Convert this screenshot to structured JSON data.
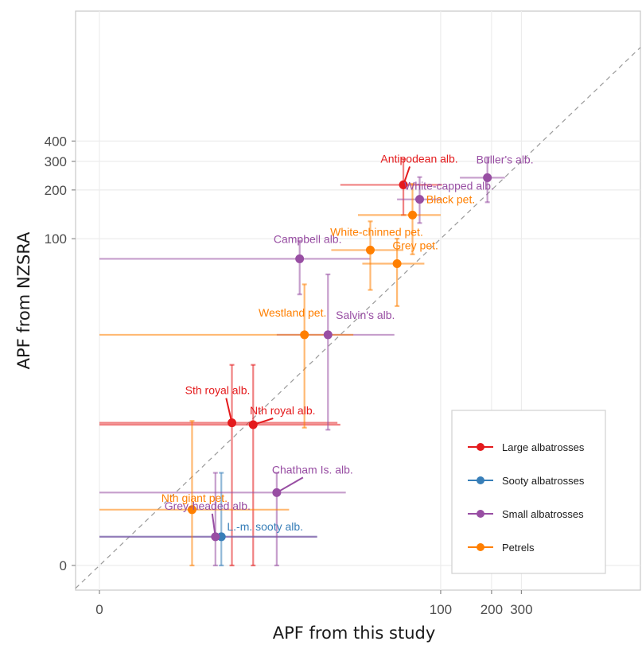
{
  "chart_data": {
    "type": "scatter",
    "xlabel": "APF from this study",
    "ylabel": "APF from NZSRA",
    "x_ticks": [
      {
        "value": 0,
        "label": "0"
      },
      {
        "value": 100,
        "label": "100"
      },
      {
        "value": 200,
        "label": "200"
      },
      {
        "value": 300,
        "label": "300"
      }
    ],
    "y_ticks": [
      {
        "value": 0,
        "label": "0"
      },
      {
        "value": 100,
        "label": "100"
      },
      {
        "value": 200,
        "label": "200"
      },
      {
        "value": 300,
        "label": "300"
      },
      {
        "value": 400,
        "label": "400"
      }
    ],
    "grid": true,
    "reference_line": "y = x (dashed)",
    "legend_position": "bottom-right",
    "colors": {
      "Large albatrosses": "#e41a1c",
      "Sooty albatrosses": "#377eb8",
      "Small albatrosses": "#984ea3",
      "Petrels": "#ff7f00"
    },
    "groups": [
      "Large albatrosses",
      "Sooty albatrosses",
      "Small albatrosses",
      "Petrels"
    ],
    "points": [
      {
        "label": "Antipodean alb.",
        "group": "Large albatrosses",
        "x": 60,
        "xlo": 25,
        "xhi": 102,
        "y": 215,
        "ylo": 140,
        "yhi": 310
      },
      {
        "label": "Sth royal alb.",
        "group": "Large albatrosses",
        "x": 5.0,
        "xlo": 0,
        "xhi": 24,
        "y": 6.5,
        "ylo": 0,
        "yhi": 16
      },
      {
        "label": "Nth royal alb.",
        "group": "Large albatrosses",
        "x": 7.0,
        "xlo": 0,
        "xhi": 25,
        "y": 6.3,
        "ylo": 0,
        "yhi": 16
      },
      {
        "label": "L.-m. sooty alb.",
        "group": "Sooty albatrosses",
        "x": 4.2,
        "xlo": 0,
        "xhi": 18,
        "y": 0.5,
        "ylo": 0,
        "yhi": 2.7
      },
      {
        "label": "Buller's alb.",
        "group": "Small albatrosses",
        "x": 189,
        "xlo": 130,
        "xhi": 240,
        "y": 238,
        "ylo": 168,
        "yhi": 318
      },
      {
        "label": "White-capped alb.",
        "group": "Small albatrosses",
        "x": 75,
        "xlo": 55,
        "xhi": 102,
        "y": 175,
        "ylo": 125,
        "yhi": 240
      },
      {
        "label": "Campbell alb.",
        "group": "Small albatrosses",
        "x": 14,
        "xlo": 0,
        "xhi": 38,
        "y": 75,
        "ylo": 45,
        "yhi": 97
      },
      {
        "label": "Salvin's alb.",
        "group": "Small albatrosses",
        "x": 21,
        "xlo": 10,
        "xhi": 53,
        "y": 25,
        "ylo": 5.8,
        "yhi": 60
      },
      {
        "label": "Chatham Is. alb.",
        "group": "Small albatrosses",
        "x": 10,
        "xlo": 0,
        "xhi": 27,
        "y": 1.8,
        "ylo": 0,
        "yhi": 2.7
      },
      {
        "label": "Grey-headed alb.",
        "group": "Small albatrosses",
        "x": 3.8,
        "xlo": 0,
        "xhi": 18,
        "y": 0.5,
        "ylo": 0,
        "yhi": 2.7
      },
      {
        "label": "Black pet.",
        "group": "Petrels",
        "x": 68,
        "xlo": 32,
        "xhi": 100,
        "y": 140,
        "ylo": 80,
        "yhi": 218
      },
      {
        "label": "White-chinned pet.",
        "group": "Petrels",
        "x": 38,
        "xlo": 22,
        "xhi": 60,
        "y": 85,
        "ylo": 48,
        "yhi": 128
      },
      {
        "label": "Grey pet.",
        "group": "Petrels",
        "x": 55,
        "xlo": 34,
        "xhi": 80,
        "y": 70,
        "ylo": 38,
        "yhi": 100
      },
      {
        "label": "Westland pet.",
        "group": "Petrels",
        "x": 15,
        "xlo": 0,
        "xhi": 30,
        "y": 25,
        "ylo": 6.0,
        "yhi": 52
      },
      {
        "label": "Nth giant pet.",
        "group": "Petrels",
        "x": 2.5,
        "xlo": 0,
        "xhi": 12,
        "y": 1.2,
        "ylo": 0,
        "yhi": 6.7
      }
    ]
  }
}
